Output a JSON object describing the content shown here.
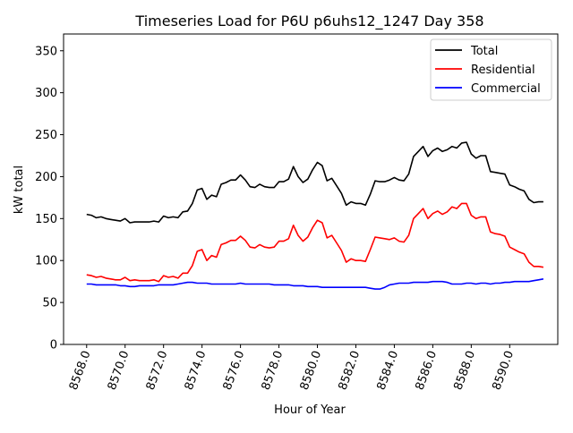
{
  "chart_data": {
    "type": "line",
    "title": "Timeseries Load for P6U p6uhs12_1247  Day 358",
    "xlabel": "Hour of Year",
    "ylabel": "kW total",
    "xlim": [
      8566.8,
      8592.5
    ],
    "ylim": [
      0,
      370
    ],
    "x_start": 8568.0,
    "x_step": 0.25,
    "xticks": [
      8568,
      8570,
      8572,
      8574,
      8576,
      8578,
      8580,
      8582,
      8584,
      8586,
      8588,
      8590
    ],
    "xtick_labels": [
      "8568.0",
      "8570.0",
      "8572.0",
      "8574.0",
      "8576.0",
      "8578.0",
      "8580.0",
      "8582.0",
      "8584.0",
      "8586.0",
      "8588.0",
      "8590.0"
    ],
    "yticks": [
      0,
      50,
      100,
      150,
      200,
      250,
      300,
      350
    ],
    "ytick_labels": [
      "0",
      "50",
      "100",
      "150",
      "200",
      "250",
      "300",
      "350"
    ],
    "legend_position": "top-right",
    "grid": false,
    "series": [
      {
        "name": "Total",
        "color": "#000000",
        "values": [
          155,
          154,
          151,
          152,
          150,
          149,
          148,
          147,
          150,
          145,
          146,
          146,
          146,
          146,
          147,
          146,
          153,
          151,
          152,
          151,
          158,
          159,
          168,
          184,
          186,
          173,
          178,
          176,
          191,
          193,
          196,
          196,
          202,
          196,
          188,
          187,
          191,
          188,
          187,
          187,
          194,
          194,
          197,
          212,
          200,
          193,
          197,
          208,
          217,
          213,
          195,
          198,
          189,
          180,
          166,
          170,
          168,
          168,
          166,
          179,
          195,
          194,
          194,
          196,
          199,
          196,
          195,
          203,
          224,
          230,
          236,
          224,
          231,
          234,
          230,
          232,
          236,
          234,
          240,
          241,
          227,
          222,
          225,
          225,
          206,
          205,
          204,
          203,
          190,
          188,
          185,
          183,
          173,
          169,
          170,
          170
        ]
      },
      {
        "name": "Residential",
        "color": "#ff0000",
        "values": [
          83,
          82,
          80,
          81,
          79,
          78,
          77,
          77,
          80,
          76,
          77,
          76,
          76,
          76,
          77,
          75,
          82,
          80,
          81,
          79,
          85,
          85,
          94,
          111,
          113,
          100,
          106,
          104,
          119,
          121,
          124,
          124,
          129,
          124,
          116,
          115,
          119,
          116,
          115,
          116,
          123,
          123,
          126,
          142,
          130,
          123,
          128,
          139,
          148,
          145,
          127,
          130,
          121,
          112,
          98,
          102,
          100,
          100,
          99,
          113,
          128,
          127,
          126,
          125,
          127,
          123,
          122,
          130,
          150,
          156,
          162,
          150,
          156,
          159,
          155,
          158,
          164,
          162,
          168,
          168,
          154,
          150,
          152,
          152,
          134,
          132,
          131,
          129,
          116,
          113,
          110,
          108,
          98,
          93,
          93,
          92
        ]
      },
      {
        "name": "Commercial",
        "color": "#0000ff",
        "values": [
          72,
          72,
          71,
          71,
          71,
          71,
          71,
          70,
          70,
          69,
          69,
          70,
          70,
          70,
          70,
          71,
          71,
          71,
          71,
          72,
          73,
          74,
          74,
          73,
          73,
          73,
          72,
          72,
          72,
          72,
          72,
          72,
          73,
          72,
          72,
          72,
          72,
          72,
          72,
          71,
          71,
          71,
          71,
          70,
          70,
          70,
          69,
          69,
          69,
          68,
          68,
          68,
          68,
          68,
          68,
          68,
          68,
          68,
          68,
          67,
          66,
          66,
          68,
          71,
          72,
          73,
          73,
          73,
          74,
          74,
          74,
          74,
          75,
          75,
          75,
          74,
          72,
          72,
          72,
          73,
          73,
          72,
          73,
          73,
          72,
          73,
          73,
          74,
          74,
          75,
          75,
          75,
          75,
          76,
          77,
          78
        ]
      }
    ]
  }
}
